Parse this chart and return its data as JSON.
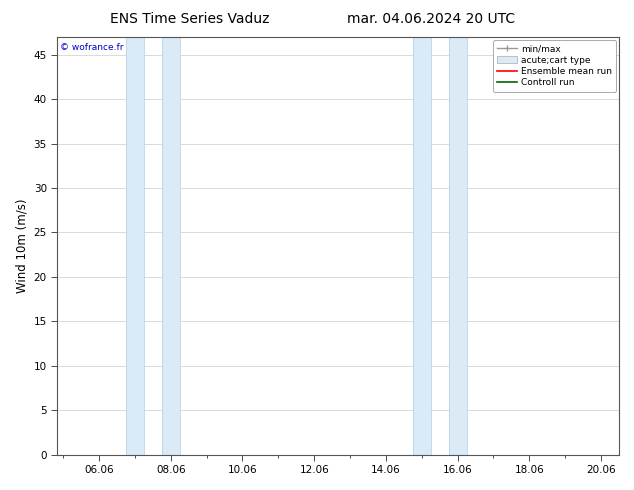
{
  "title_left": "ENS Time Series Vaduz",
  "title_right": "mar. 04.06.2024 20 UTC",
  "ylabel": "Wind 10m (m/s)",
  "ylim": [
    0,
    47
  ],
  "yticks": [
    0,
    5,
    10,
    15,
    20,
    25,
    30,
    35,
    40,
    45
  ],
  "x_labels": [
    "06.06",
    "08.06",
    "10.06",
    "12.06",
    "14.06",
    "16.06",
    "18.06",
    "20.06"
  ],
  "x_tick_days": [
    6.0,
    8.0,
    10.0,
    12.0,
    14.0,
    16.0,
    18.0,
    20.0
  ],
  "xlim_left": 4.8333,
  "xlim_right": 20.5,
  "night_bands": [
    [
      6.75,
      7.25
    ],
    [
      7.75,
      8.25
    ],
    [
      14.75,
      15.25
    ],
    [
      15.75,
      16.25
    ]
  ],
  "shaded_color": "#daeaf7",
  "shaded_edge_color": "#b8d4e8",
  "background_color": "#ffffff",
  "plot_bg_color": "#ffffff",
  "grid_color": "#cccccc",
  "watermark_text": "© wofrance.fr",
  "watermark_color": "#0000cc",
  "legend_labels": [
    "min/max",
    "acute;cart type",
    "Ensemble mean run",
    "Controll run"
  ],
  "legend_colors": [
    "#aaaaaa",
    "#daeaf7",
    "#ff0000",
    "#008000"
  ],
  "title_fontsize": 10,
  "tick_fontsize": 7.5,
  "ylabel_fontsize": 8.5
}
